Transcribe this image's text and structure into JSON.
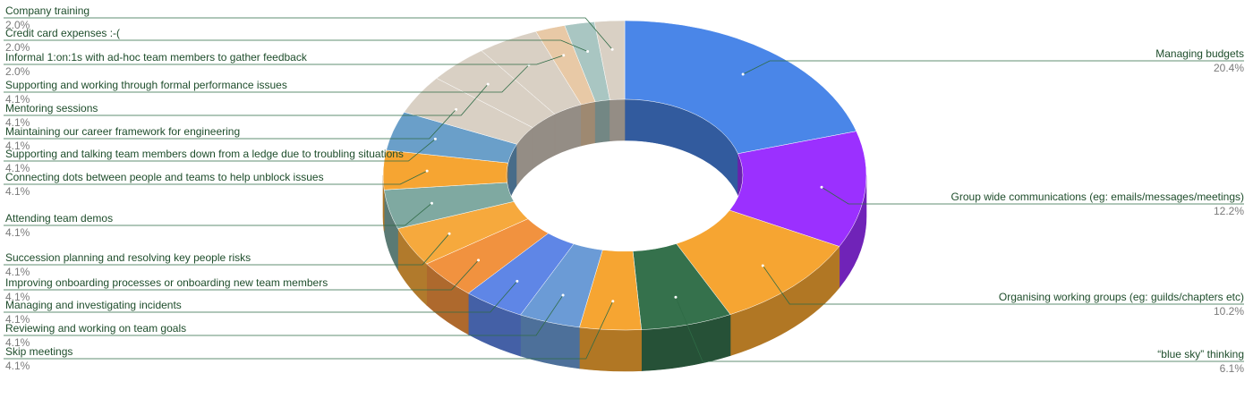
{
  "chart_data": {
    "type": "pie",
    "variant": "3d-donut",
    "title": "",
    "slices": [
      {
        "name": "Managing budgets",
        "value": 20.4,
        "label": "20.4%",
        "color": "#4a86e8",
        "side": "right"
      },
      {
        "name": "Group wide communications (eg: emails/messages/meetings)",
        "value": 12.2,
        "label": "12.2%",
        "color": "#9b30ff",
        "side": "right"
      },
      {
        "name": "Organising working groups (eg: guilds/chapters etc)",
        "value": 10.2,
        "label": "10.2%",
        "color": "#f6a532",
        "side": "right"
      },
      {
        "name": "“blue sky” thinking",
        "value": 6.1,
        "label": "6.1%",
        "color": "#35714c",
        "side": "right"
      },
      {
        "name": "Skip meetings",
        "value": 4.1,
        "label": "4.1%",
        "color": "#f6a532",
        "side": "left"
      },
      {
        "name": "Reviewing and working on team goals",
        "value": 4.1,
        "label": "4.1%",
        "color": "#6b9bd6",
        "side": "left"
      },
      {
        "name": "Managing and investigating incidents",
        "value": 4.1,
        "label": "4.1%",
        "color": "#5f86e6",
        "side": "left"
      },
      {
        "name": "Improving onboarding processes or onboarding new team members",
        "value": 4.1,
        "label": "4.1%",
        "color": "#f1923f",
        "side": "left"
      },
      {
        "name": "Succession planning and resolving key people risks",
        "value": 4.1,
        "label": "4.1%",
        "color": "#f6a93d",
        "side": "left"
      },
      {
        "name": "Attending team demos",
        "value": 4.1,
        "label": "4.1%",
        "color": "#7fa9a1",
        "side": "left"
      },
      {
        "name": "Connecting dots between people and teams to help unblock issues",
        "value": 4.1,
        "label": "4.1%",
        "color": "#f6a532",
        "side": "left"
      },
      {
        "name": "Supporting and talking team members down from a ledge due to troubling situations",
        "value": 4.1,
        "label": "4.1%",
        "color": "#6a9fc9",
        "side": "left"
      },
      {
        "name": "Maintaining our career framework for engineering",
        "value": 4.1,
        "label": "4.1%",
        "color": "#d9d0c4",
        "side": "left"
      },
      {
        "name": "Mentoring sessions",
        "value": 4.1,
        "label": "4.1%",
        "color": "#d9d0c4",
        "side": "left"
      },
      {
        "name": "Supporting and working through formal performance issues",
        "value": 4.1,
        "label": "4.1%",
        "color": "#d9d0c4",
        "side": "left"
      },
      {
        "name": "Informal 1:on:1s with ad-hoc team members to gather feedback",
        "value": 2.0,
        "label": "2.0%",
        "color": "#e8c9a6",
        "side": "left"
      },
      {
        "name": "Credit card expenses :-(",
        "value": 2.0,
        "label": "2.0%",
        "color": "#a9c6c2",
        "side": "left"
      },
      {
        "name": "Company training",
        "value": 2.0,
        "label": "2.0%",
        "color": "#d9d0c4",
        "side": "left"
      }
    ],
    "legend": "none",
    "label_placement": "outside-with-leader-lines"
  }
}
